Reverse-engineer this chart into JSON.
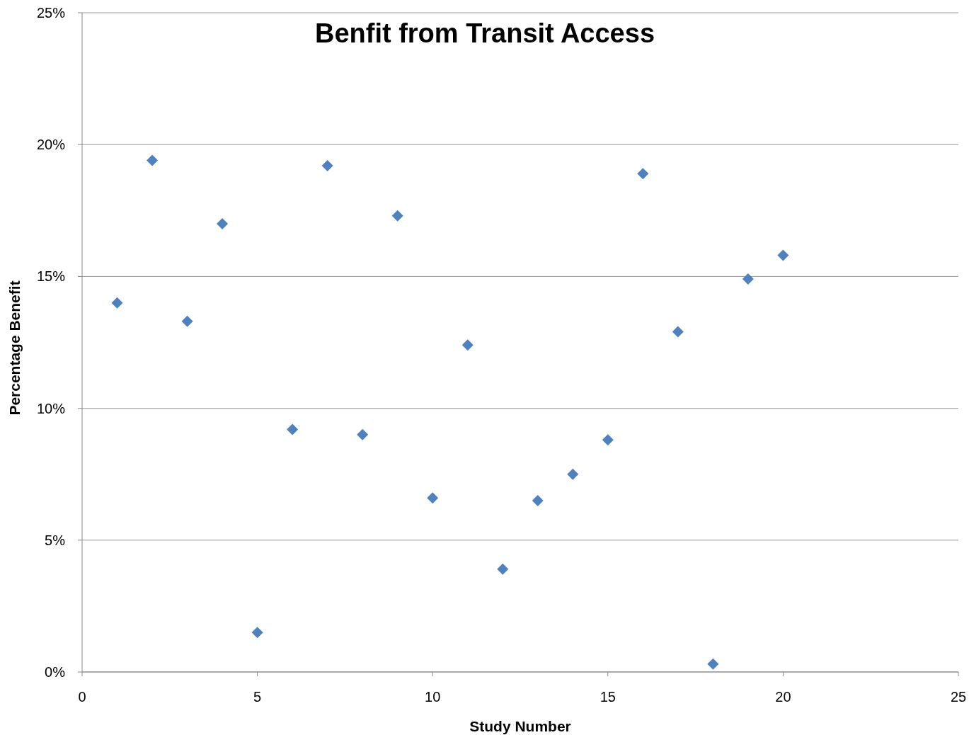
{
  "chart_data": {
    "type": "scatter",
    "title": "Benfit from Transit Access",
    "xlabel": "Study Number",
    "ylabel": "Percentage Benefit",
    "x": [
      1,
      2,
      3,
      4,
      5,
      6,
      7,
      8,
      9,
      10,
      11,
      12,
      13,
      14,
      15,
      16,
      17,
      18,
      19,
      20
    ],
    "series": [
      {
        "color": "#4f81bd",
        "values": [
          14.0,
          19.4,
          13.3,
          17.0,
          1.5,
          9.2,
          19.2,
          9.0,
          17.3,
          6.6,
          12.4,
          3.9,
          6.5,
          7.5,
          8.8,
          18.9,
          12.9,
          0.3,
          14.9,
          15.8
        ]
      }
    ],
    "xlim": [
      0,
      25
    ],
    "xticks": [
      0,
      5,
      10,
      15,
      20,
      25
    ],
    "ylim": [
      0,
      25
    ],
    "yticks": [
      {
        "value": 0,
        "label": "0%"
      },
      {
        "value": 5,
        "label": "5%"
      },
      {
        "value": 10,
        "label": "10%"
      },
      {
        "value": 15,
        "label": "15%"
      },
      {
        "value": 20,
        "label": "20%"
      },
      {
        "value": 25,
        "label": "25%"
      }
    ],
    "grid": "y",
    "marker": "diamond"
  }
}
